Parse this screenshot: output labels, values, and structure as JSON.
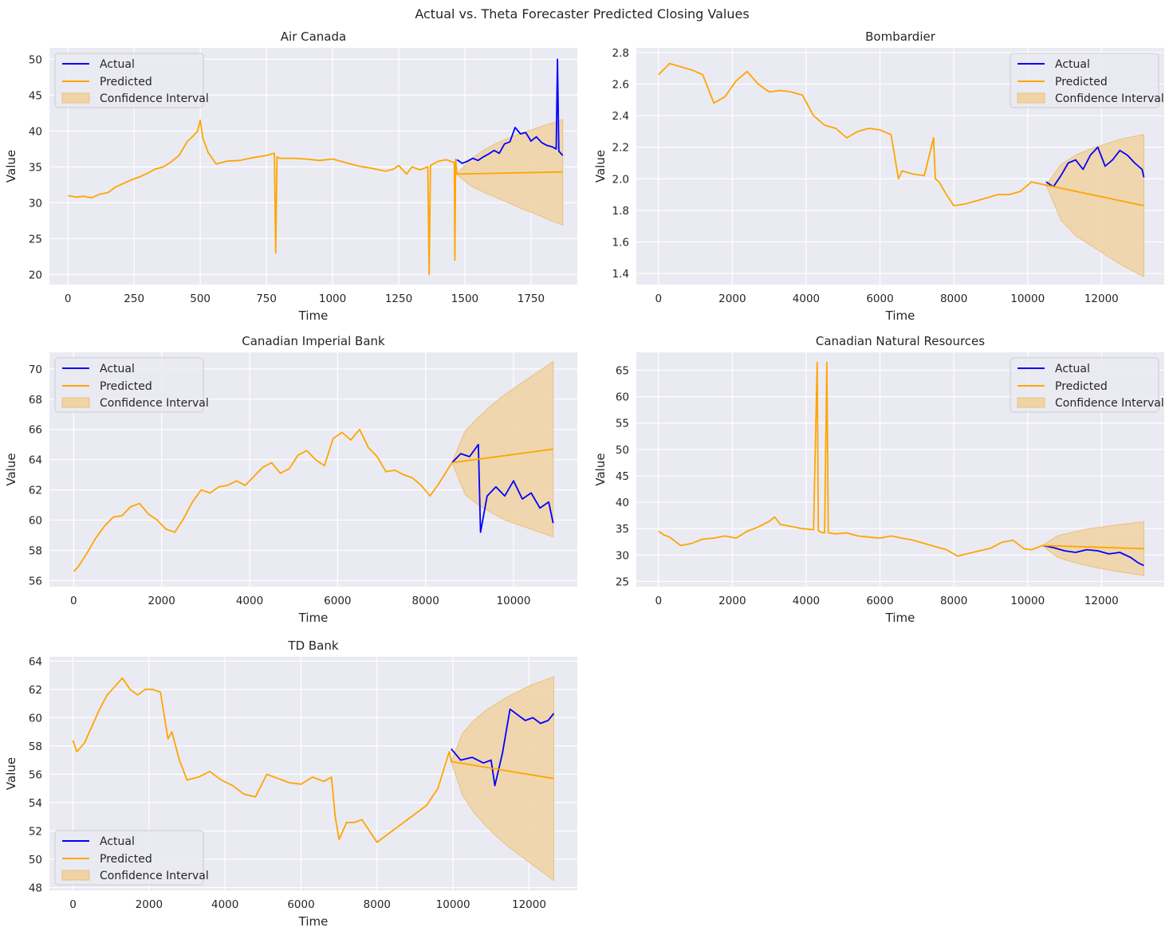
{
  "figure": {
    "title": "Actual vs. Theta Forecaster Predicted Closing Values"
  },
  "colors": {
    "actual": "#0000ff",
    "predicted": "#ffa500",
    "ci": "#f0d4a6",
    "plot_bg": "#eaeaf2",
    "grid": "#ffffff"
  },
  "chart_data": [
    {
      "type": "line",
      "title": "Air Canada",
      "xlabel": "Time",
      "ylabel": "Value",
      "xlim": [
        -70,
        1925
      ],
      "ylim": [
        18.6,
        51.6
      ],
      "xticks": [
        0,
        250,
        500,
        750,
        1000,
        1250,
        1500,
        1750
      ],
      "yticks": [
        20,
        25,
        30,
        35,
        40,
        45,
        50
      ],
      "legend": {
        "position": "upper-left",
        "entries": [
          "Actual",
          "Predicted",
          "Confidence Interval"
        ]
      },
      "grid": true,
      "series": [
        {
          "name": "Actual",
          "x": [
            1470,
            1490,
            1510,
            1530,
            1550,
            1570,
            1590,
            1610,
            1630,
            1650,
            1670,
            1690,
            1710,
            1730,
            1750,
            1770,
            1790,
            1810,
            1830,
            1845,
            1850,
            1855,
            1870
          ],
          "y": [
            36.0,
            35.5,
            35.8,
            36.2,
            35.9,
            36.4,
            36.8,
            37.3,
            36.9,
            38.2,
            38.5,
            40.5,
            39.6,
            39.8,
            38.6,
            39.2,
            38.4,
            38.0,
            37.8,
            37.5,
            50.0,
            37.2,
            36.6
          ]
        },
        {
          "name": "Predicted",
          "x": [
            0,
            30,
            60,
            90,
            120,
            150,
            180,
            210,
            240,
            270,
            300,
            330,
            360,
            390,
            420,
            450,
            470,
            490,
            500,
            510,
            530,
            560,
            600,
            650,
            700,
            750,
            780,
            785,
            790,
            800,
            850,
            900,
            950,
            1000,
            1050,
            1100,
            1150,
            1200,
            1230,
            1250,
            1280,
            1300,
            1330,
            1360,
            1365,
            1370,
            1400,
            1430,
            1460,
            1462,
            1465,
            1470,
            1870
          ],
          "y": [
            31.0,
            30.8,
            30.9,
            30.7,
            31.2,
            31.4,
            32.2,
            32.7,
            33.2,
            33.6,
            34.1,
            34.7,
            35.0,
            35.7,
            36.6,
            38.5,
            39.2,
            40.0,
            41.5,
            39.0,
            37.0,
            35.4,
            35.8,
            35.9,
            36.3,
            36.6,
            36.9,
            23.0,
            36.4,
            36.2,
            36.2,
            36.1,
            35.9,
            36.1,
            35.6,
            35.1,
            34.8,
            34.4,
            34.7,
            35.2,
            34.0,
            35.0,
            34.6,
            35.0,
            20.0,
            35.2,
            35.8,
            36.0,
            35.6,
            22.0,
            36.1,
            34.0,
            34.3
          ]
        },
        {
          "name": "Confidence Interval",
          "x": [
            1470,
            1520,
            1570,
            1620,
            1670,
            1720,
            1770,
            1820,
            1870
          ],
          "lower": [
            34.0,
            32.4,
            31.5,
            30.7,
            29.9,
            29.1,
            28.4,
            27.6,
            26.9
          ],
          "upper": [
            34.0,
            36.0,
            37.3,
            38.3,
            39.1,
            39.8,
            40.4,
            41.0,
            41.6
          ]
        }
      ]
    },
    {
      "type": "line",
      "title": "Bombardier",
      "xlabel": "Time",
      "ylabel": "Value",
      "xlim": [
        -600,
        13700
      ],
      "ylim": [
        1.33,
        2.83
      ],
      "xticks": [
        0,
        2000,
        4000,
        6000,
        8000,
        10000,
        12000
      ],
      "yticks": [
        1.4,
        1.6,
        1.8,
        2.0,
        2.2,
        2.4,
        2.6,
        2.8
      ],
      "legend": {
        "position": "upper-right",
        "entries": [
          "Actual",
          "Predicted",
          "Confidence Interval"
        ]
      },
      "grid": true,
      "series": [
        {
          "name": "Actual",
          "x": [
            10500,
            10700,
            10900,
            11100,
            11300,
            11500,
            11700,
            11900,
            12100,
            12300,
            12500,
            12700,
            12900,
            13100,
            13150
          ],
          "y": [
            1.98,
            1.95,
            2.02,
            2.1,
            2.12,
            2.06,
            2.15,
            2.2,
            2.08,
            2.12,
            2.18,
            2.15,
            2.1,
            2.06,
            2.01
          ]
        },
        {
          "name": "Predicted",
          "x": [
            0,
            300,
            600,
            900,
            1200,
            1500,
            1800,
            2100,
            2400,
            2700,
            3000,
            3300,
            3600,
            3900,
            4200,
            4500,
            4800,
            5100,
            5400,
            5700,
            6000,
            6300,
            6500,
            6600,
            6900,
            7200,
            7450,
            7500,
            7600,
            7800,
            8000,
            8300,
            8600,
            8900,
            9200,
            9500,
            9800,
            10100,
            10500,
            13150
          ],
          "y": [
            2.66,
            2.73,
            2.71,
            2.69,
            2.66,
            2.48,
            2.52,
            2.62,
            2.68,
            2.6,
            2.55,
            2.56,
            2.55,
            2.53,
            2.4,
            2.34,
            2.32,
            2.26,
            2.3,
            2.32,
            2.31,
            2.28,
            2.0,
            2.05,
            2.03,
            2.02,
            2.26,
            2.0,
            1.98,
            1.9,
            1.83,
            1.84,
            1.86,
            1.88,
            1.9,
            1.9,
            1.92,
            1.98,
            1.96,
            1.83
          ]
        },
        {
          "name": "Confidence Interval",
          "x": [
            10500,
            10900,
            11300,
            11700,
            12100,
            12500,
            12900,
            13150
          ],
          "lower": [
            1.96,
            1.74,
            1.64,
            1.58,
            1.52,
            1.46,
            1.41,
            1.38
          ],
          "upper": [
            1.96,
            2.09,
            2.15,
            2.19,
            2.22,
            2.25,
            2.27,
            2.28
          ]
        }
      ]
    },
    {
      "type": "line",
      "title": "Canadian Imperial Bank",
      "xlabel": "Time",
      "ylabel": "Value",
      "xlim": [
        -550,
        11450
      ],
      "ylim": [
        55.6,
        71.1
      ],
      "xticks": [
        0,
        2000,
        4000,
        6000,
        8000,
        10000
      ],
      "yticks": [
        56,
        58,
        60,
        62,
        64,
        66,
        68,
        70
      ],
      "legend": {
        "position": "upper-left",
        "entries": [
          "Actual",
          "Predicted",
          "Confidence Interval"
        ]
      },
      "grid": true,
      "series": [
        {
          "name": "Actual",
          "x": [
            8600,
            8800,
            9000,
            9200,
            9250,
            9400,
            9600,
            9800,
            10000,
            10200,
            10400,
            10600,
            10800,
            10900
          ],
          "y": [
            63.8,
            64.4,
            64.2,
            65.0,
            59.2,
            61.6,
            62.2,
            61.6,
            62.6,
            61.4,
            61.8,
            60.8,
            61.2,
            59.8
          ]
        },
        {
          "name": "Predicted",
          "x": [
            0,
            100,
            300,
            500,
            700,
            900,
            1100,
            1300,
            1500,
            1700,
            1900,
            2100,
            2300,
            2500,
            2700,
            2900,
            3100,
            3300,
            3500,
            3700,
            3900,
            4100,
            4300,
            4500,
            4700,
            4900,
            5100,
            5300,
            5500,
            5700,
            5900,
            6100,
            6300,
            6500,
            6700,
            6900,
            7100,
            7300,
            7500,
            7700,
            7900,
            8100,
            8300,
            8600,
            10900
          ],
          "y": [
            56.6,
            56.9,
            57.8,
            58.8,
            59.6,
            60.2,
            60.3,
            60.9,
            61.1,
            60.4,
            60.0,
            59.4,
            59.2,
            60.1,
            61.2,
            62.0,
            61.8,
            62.2,
            62.3,
            62.6,
            62.3,
            62.9,
            63.5,
            63.8,
            63.1,
            63.4,
            64.3,
            64.6,
            64.0,
            63.6,
            65.4,
            65.8,
            65.3,
            66.0,
            64.8,
            64.2,
            63.2,
            63.3,
            63.0,
            62.8,
            62.3,
            61.6,
            62.4,
            63.8,
            64.7
          ]
        },
        {
          "name": "Confidence Interval",
          "x": [
            8600,
            8900,
            9200,
            9500,
            9800,
            10100,
            10400,
            10700,
            10900
          ],
          "lower": [
            63.8,
            61.7,
            61.0,
            60.5,
            60.0,
            59.7,
            59.4,
            59.1,
            58.9
          ],
          "upper": [
            63.8,
            65.9,
            66.8,
            67.6,
            68.3,
            68.9,
            69.5,
            70.1,
            70.5
          ]
        }
      ]
    },
    {
      "type": "line",
      "title": "Canadian Natural Resources",
      "xlabel": "Time",
      "ylabel": "Value",
      "xlim": [
        -600,
        13700
      ],
      "ylim": [
        24.0,
        68.4
      ],
      "xticks": [
        0,
        2000,
        4000,
        6000,
        8000,
        10000,
        12000
      ],
      "yticks": [
        25,
        30,
        35,
        40,
        45,
        50,
        55,
        60,
        65
      ],
      "legend": {
        "position": "upper-right",
        "entries": [
          "Actual",
          "Predicted",
          "Confidence Interval"
        ]
      },
      "grid": true,
      "series": [
        {
          "name": "Actual",
          "x": [
            10400,
            10700,
            11000,
            11300,
            11600,
            11900,
            12200,
            12500,
            12800,
            13000,
            13150
          ],
          "y": [
            31.8,
            31.4,
            30.8,
            30.5,
            31.0,
            30.8,
            30.2,
            30.5,
            29.5,
            28.5,
            28.0
          ]
        },
        {
          "name": "Predicted",
          "x": [
            0,
            150,
            300,
            600,
            900,
            1200,
            1500,
            1800,
            2100,
            2400,
            2700,
            3000,
            3150,
            3300,
            3600,
            3900,
            4200,
            4300,
            4330,
            4360,
            4400,
            4500,
            4560,
            4600,
            4800,
            5100,
            5400,
            5700,
            6000,
            6300,
            6600,
            6900,
            7200,
            7500,
            7800,
            8100,
            8400,
            8700,
            9000,
            9300,
            9600,
            9900,
            10100,
            10400,
            13150
          ],
          "y": [
            34.5,
            33.8,
            33.4,
            31.8,
            32.2,
            33.0,
            33.2,
            33.6,
            33.2,
            34.5,
            35.3,
            36.4,
            37.2,
            35.8,
            35.4,
            35.0,
            34.8,
            66.5,
            34.6,
            34.5,
            34.3,
            34.2,
            66.5,
            34.2,
            34.0,
            34.2,
            33.6,
            33.4,
            33.2,
            33.6,
            33.2,
            32.8,
            32.2,
            31.6,
            31.0,
            29.8,
            30.3,
            30.8,
            31.3,
            32.4,
            32.8,
            31.2,
            31.0,
            31.8,
            31.2
          ]
        },
        {
          "name": "Confidence Interval",
          "x": [
            10400,
            10800,
            11200,
            11600,
            12000,
            12400,
            12800,
            13150
          ],
          "lower": [
            31.8,
            29.6,
            28.7,
            28.0,
            27.4,
            26.9,
            26.5,
            26.1
          ],
          "upper": [
            31.8,
            33.6,
            34.3,
            34.9,
            35.3,
            35.7,
            36.0,
            36.3
          ]
        }
      ]
    },
    {
      "type": "line",
      "title": "TD Bank",
      "xlabel": "Time",
      "ylabel": "Value",
      "xlim": [
        -620,
        13270
      ],
      "ylim": [
        47.8,
        64.3
      ],
      "xticks": [
        0,
        2000,
        4000,
        6000,
        8000,
        10000,
        12000
      ],
      "yticks": [
        48,
        50,
        52,
        54,
        56,
        58,
        60,
        62,
        64
      ],
      "legend": {
        "position": "lower-left",
        "entries": [
          "Actual",
          "Predicted",
          "Confidence Interval"
        ]
      },
      "grid": true,
      "series": [
        {
          "name": "Actual",
          "x": [
            9950,
            10200,
            10500,
            10800,
            11000,
            11100,
            11300,
            11500,
            11700,
            11900,
            12100,
            12300,
            12500,
            12650
          ],
          "y": [
            57.8,
            57.0,
            57.2,
            56.8,
            57.0,
            55.2,
            57.5,
            60.6,
            60.2,
            59.8,
            60.0,
            59.6,
            59.8,
            60.3
          ]
        },
        {
          "name": "Predicted",
          "x": [
            0,
            100,
            300,
            500,
            700,
            900,
            1100,
            1300,
            1500,
            1700,
            1900,
            2100,
            2300,
            2500,
            2600,
            2800,
            3000,
            3300,
            3600,
            3900,
            4200,
            4500,
            4800,
            5100,
            5400,
            5700,
            6000,
            6300,
            6600,
            6800,
            6900,
            7000,
            7200,
            7400,
            7600,
            7800,
            8000,
            8200,
            8400,
            8700,
            9000,
            9300,
            9600,
            9900,
            9950,
            12650
          ],
          "y": [
            58.4,
            57.6,
            58.2,
            59.4,
            60.6,
            61.6,
            62.2,
            62.8,
            62.0,
            61.6,
            62.0,
            62.0,
            61.8,
            58.5,
            59.0,
            57.0,
            55.6,
            55.8,
            56.2,
            55.6,
            55.2,
            54.6,
            54.4,
            56.0,
            55.7,
            55.4,
            55.3,
            55.8,
            55.5,
            55.8,
            53.0,
            51.4,
            52.6,
            52.6,
            52.8,
            52.0,
            51.2,
            51.6,
            52.0,
            52.6,
            53.2,
            53.8,
            55.0,
            57.6,
            56.9,
            55.7
          ]
        },
        {
          "name": "Confidence Interval",
          "x": [
            9950,
            10250,
            10550,
            10850,
            11150,
            11450,
            11750,
            12050,
            12350,
            12650
          ],
          "lower": [
            56.9,
            54.5,
            53.3,
            52.4,
            51.6,
            50.9,
            50.3,
            49.7,
            49.1,
            48.5
          ],
          "upper": [
            56.9,
            58.9,
            59.8,
            60.5,
            61.0,
            61.5,
            61.9,
            62.3,
            62.6,
            62.9
          ]
        }
      ]
    }
  ]
}
